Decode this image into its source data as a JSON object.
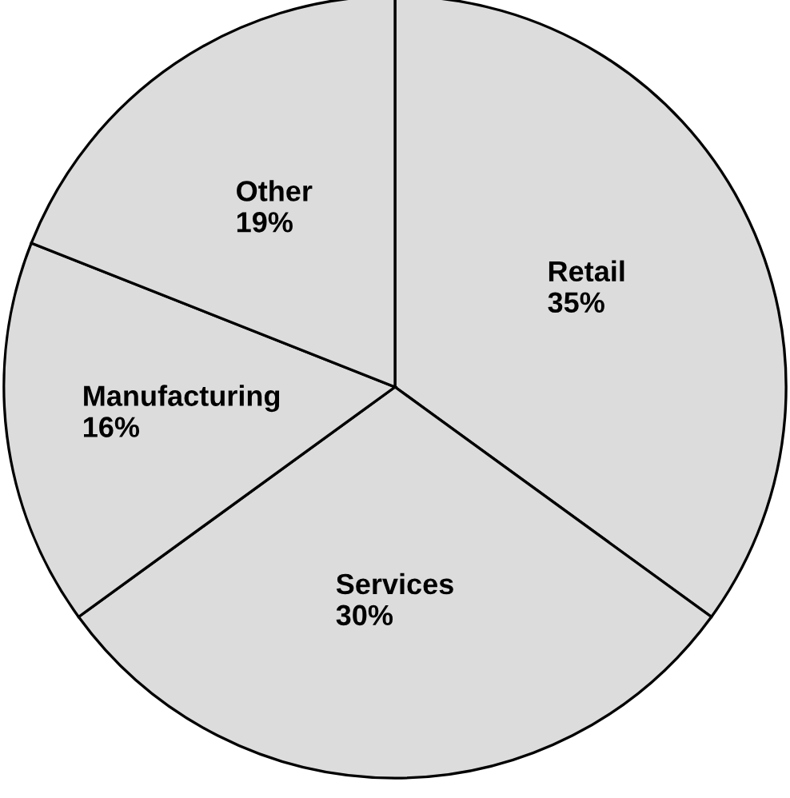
{
  "chart_data": {
    "type": "pie",
    "categories": [
      "Retail",
      "Services",
      "Manufacturing",
      "Other"
    ],
    "values": [
      35,
      30,
      16,
      19
    ],
    "value_labels": [
      "35%",
      "30%",
      "16%",
      "19%"
    ],
    "colors": [
      "#dcdcdc",
      "#dcdcdc",
      "#dcdcdc",
      "#dcdcdc"
    ],
    "legend": false
  }
}
